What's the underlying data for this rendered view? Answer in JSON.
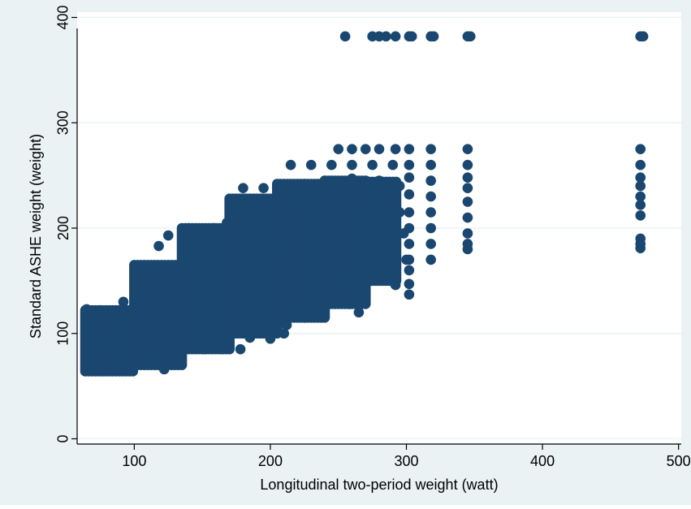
{
  "colors": {
    "outer_background": "#eaf2f3",
    "plot_background": "#ffffff",
    "gridline": "#eaf2f3",
    "axis": "#000000",
    "marker": "#1a476f"
  },
  "chart_data": {
    "type": "scatter",
    "xlabel": "Longitudinal two-period weight (watt)",
    "ylabel": "Standard ASHE weight (weight)",
    "xlim": [
      58,
      502
    ],
    "ylim": [
      -5,
      405
    ],
    "xticks": [
      100,
      200,
      300,
      400,
      500
    ],
    "yticks": [
      0,
      100,
      200,
      300,
      400
    ],
    "grid": true,
    "legend": "none",
    "marker": "filled-circle",
    "points": [
      [
        255,
        382
      ],
      [
        275,
        382
      ],
      [
        280,
        382
      ],
      [
        285,
        382
      ],
      [
        292,
        382
      ],
      [
        302,
        382
      ],
      [
        304,
        382
      ],
      [
        318,
        382
      ],
      [
        320,
        382
      ],
      [
        345,
        382
      ],
      [
        347,
        382
      ],
      [
        472,
        382
      ],
      [
        474,
        382
      ],
      [
        250,
        275
      ],
      [
        260,
        275
      ],
      [
        270,
        275
      ],
      [
        280,
        275
      ],
      [
        292,
        275
      ],
      [
        302,
        275
      ],
      [
        318,
        275
      ],
      [
        345,
        275
      ],
      [
        472,
        275
      ],
      [
        215,
        260
      ],
      [
        230,
        260
      ],
      [
        245,
        260
      ],
      [
        260,
        260
      ],
      [
        275,
        260
      ],
      [
        290,
        260
      ],
      [
        302,
        260
      ],
      [
        318,
        260
      ],
      [
        345,
        260
      ],
      [
        472,
        260
      ],
      [
        180,
        238
      ],
      [
        195,
        238
      ],
      [
        210,
        240
      ],
      [
        225,
        242
      ],
      [
        240,
        245
      ],
      [
        260,
        247
      ],
      [
        280,
        245
      ],
      [
        295,
        240
      ],
      [
        302,
        248
      ],
      [
        302,
        232
      ],
      [
        302,
        215
      ],
      [
        302,
        200
      ],
      [
        302,
        185
      ],
      [
        302,
        170
      ],
      [
        302,
        160
      ],
      [
        302,
        147
      ],
      [
        302,
        137
      ],
      [
        318,
        245
      ],
      [
        318,
        230
      ],
      [
        318,
        215
      ],
      [
        318,
        200
      ],
      [
        318,
        185
      ],
      [
        318,
        170
      ],
      [
        345,
        248
      ],
      [
        345,
        238
      ],
      [
        345,
        225
      ],
      [
        345,
        210
      ],
      [
        345,
        195
      ],
      [
        345,
        185
      ],
      [
        345,
        180
      ],
      [
        472,
        248
      ],
      [
        472,
        240
      ],
      [
        472,
        230
      ],
      [
        472,
        222
      ],
      [
        472,
        212
      ],
      [
        472,
        190
      ],
      [
        472,
        185
      ],
      [
        472,
        181
      ],
      [
        65,
        123
      ],
      [
        65,
        110
      ],
      [
        65,
        95
      ],
      [
        65,
        85
      ],
      [
        65,
        78
      ],
      [
        65,
        70
      ],
      [
        68,
        78
      ],
      [
        70,
        90
      ],
      [
        72,
        83
      ],
      [
        75,
        122
      ],
      [
        78,
        110
      ],
      [
        80,
        100
      ],
      [
        82,
        88
      ],
      [
        85,
        72
      ],
      [
        88,
        66
      ],
      [
        92,
        130
      ],
      [
        95,
        115
      ],
      [
        98,
        95
      ],
      [
        100,
        80
      ],
      [
        105,
        138
      ],
      [
        108,
        108
      ],
      [
        110,
        140
      ],
      [
        112,
        150
      ],
      [
        115,
        125
      ],
      [
        118,
        95
      ],
      [
        120,
        75
      ],
      [
        122,
        66
      ],
      [
        125,
        145
      ],
      [
        118,
        183
      ],
      [
        125,
        193
      ],
      [
        130,
        163
      ],
      [
        135,
        155
      ],
      [
        140,
        200
      ],
      [
        142,
        178
      ],
      [
        145,
        165
      ],
      [
        148,
        120
      ],
      [
        150,
        105
      ],
      [
        152,
        188
      ],
      [
        155,
        140
      ],
      [
        158,
        200
      ],
      [
        160,
        175
      ],
      [
        162,
        95
      ],
      [
        165,
        85
      ],
      [
        168,
        205
      ],
      [
        170,
        160
      ],
      [
        172,
        130
      ],
      [
        175,
        170
      ],
      [
        178,
        85
      ],
      [
        180,
        215
      ],
      [
        182,
        185
      ],
      [
        185,
        140
      ],
      [
        188,
        110
      ],
      [
        190,
        150
      ],
      [
        192,
        225
      ],
      [
        195,
        200
      ],
      [
        198,
        170
      ],
      [
        200,
        95
      ],
      [
        202,
        215
      ],
      [
        205,
        180
      ],
      [
        208,
        145
      ],
      [
        210,
        100
      ],
      [
        212,
        232
      ],
      [
        215,
        200
      ],
      [
        218,
        160
      ],
      [
        220,
        120
      ],
      [
        225,
        228
      ],
      [
        228,
        190
      ],
      [
        232,
        155
      ],
      [
        235,
        135
      ],
      [
        238,
        215
      ],
      [
        240,
        175
      ],
      [
        245,
        232
      ],
      [
        248,
        195
      ],
      [
        250,
        160
      ],
      [
        255,
        148
      ],
      [
        258,
        220
      ],
      [
        260,
        185
      ],
      [
        265,
        230
      ],
      [
        268,
        172
      ],
      [
        270,
        140
      ],
      [
        275,
        210
      ],
      [
        278,
        190
      ],
      [
        282,
        155
      ],
      [
        285,
        225
      ],
      [
        288,
        200
      ],
      [
        290,
        175
      ],
      [
        292,
        160
      ],
      [
        295,
        215
      ],
      [
        298,
        195
      ],
      [
        300,
        170
      ],
      [
        292,
        146
      ],
      [
        265,
        120
      ],
      [
        258,
        128
      ],
      [
        240,
        128
      ],
      [
        225,
        115
      ],
      [
        212,
        108
      ],
      [
        200,
        102
      ],
      [
        185,
        96
      ],
      [
        168,
        88
      ],
      [
        152,
        85
      ]
    ],
    "bands": [
      {
        "x0": 64,
        "x1": 100,
        "lo": 64,
        "hi": 122
      },
      {
        "x0": 100,
        "x1": 135,
        "lo": 70,
        "hi": 165
      },
      {
        "x0": 135,
        "x1": 170,
        "lo": 85,
        "hi": 200
      },
      {
        "x0": 170,
        "x1": 205,
        "lo": 100,
        "hi": 228
      },
      {
        "x0": 205,
        "x1": 240,
        "lo": 115,
        "hi": 242
      },
      {
        "x0": 240,
        "x1": 270,
        "lo": 128,
        "hi": 245
      },
      {
        "x0": 270,
        "x1": 293,
        "lo": 150,
        "hi": 244
      }
    ]
  }
}
